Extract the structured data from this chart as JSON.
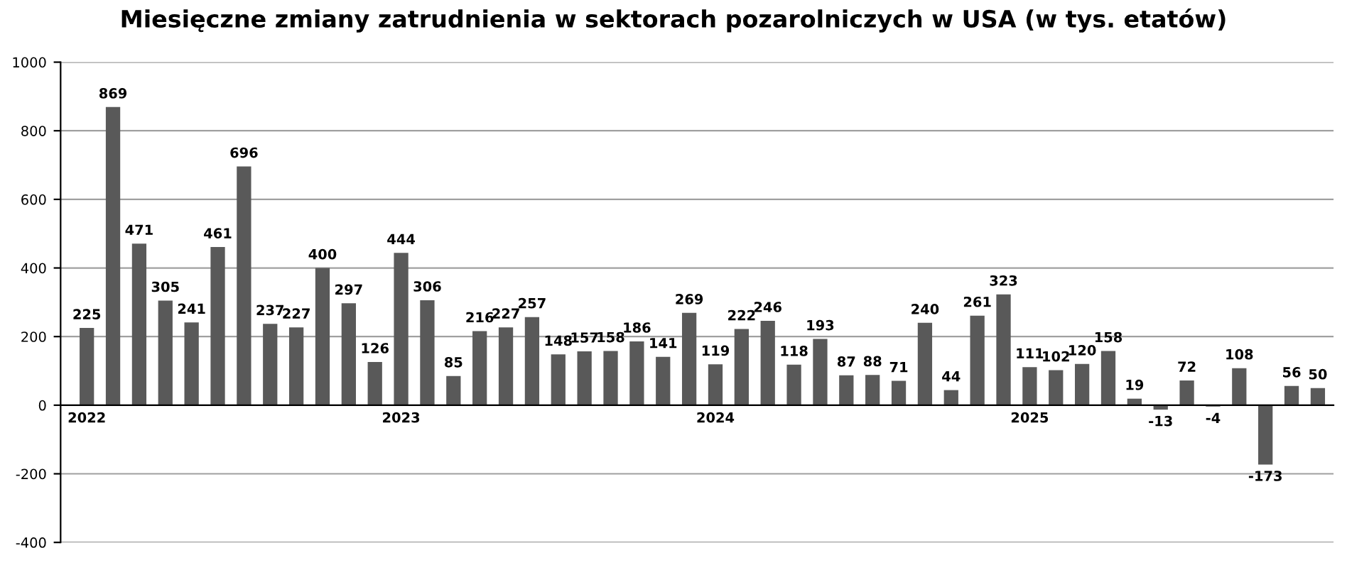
{
  "chart_data": {
    "type": "bar",
    "title": "Miesięczne zmiany zatrudnienia w sektorach pozarolniczych w USA (w tys. etatów)",
    "categories": [
      "2022",
      null,
      null,
      null,
      null,
      null,
      null,
      null,
      null,
      null,
      null,
      null,
      "2023",
      null,
      null,
      null,
      null,
      null,
      null,
      null,
      null,
      null,
      null,
      null,
      "2024",
      null,
      null,
      null,
      null,
      null,
      null,
      null,
      null,
      null,
      null,
      null,
      "2025",
      null,
      null,
      null,
      null,
      null,
      null,
      null,
      null,
      null,
      null,
      null
    ],
    "values": [
      225,
      869,
      471,
      305,
      241,
      461,
      696,
      237,
      227,
      400,
      297,
      126,
      444,
      306,
      85,
      216,
      227,
      257,
      148,
      157,
      158,
      186,
      141,
      269,
      119,
      222,
      246,
      118,
      193,
      87,
      88,
      71,
      240,
      44,
      261,
      323,
      111,
      102,
      120,
      158,
      19,
      -13,
      72,
      -4,
      108,
      -173,
      56,
      50
    ],
    "color": "#595959",
    "ylim": [
      -400,
      1000
    ],
    "yticks": [
      -400,
      -200,
      0,
      200,
      400,
      600,
      800,
      1000
    ],
    "grid": "y",
    "data_labels": true
  }
}
